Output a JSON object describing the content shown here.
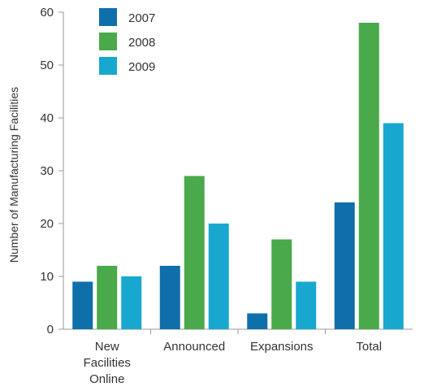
{
  "chart_data": {
    "type": "bar",
    "ylabel": "Number of Manufacturing Facilities",
    "xlabel": "",
    "ylim": [
      0,
      60
    ],
    "yticks": [
      0,
      10,
      20,
      30,
      40,
      50,
      60
    ],
    "grid": false,
    "legend_placement": "top-left",
    "categories": [
      [
        "New",
        "Facilities",
        "Online"
      ],
      [
        "Announced"
      ],
      [
        "Expansions"
      ],
      [
        "Total"
      ]
    ],
    "series": [
      {
        "name": "2007",
        "color": "#0f6faa",
        "values": [
          9,
          12,
          3,
          24
        ]
      },
      {
        "name": "2008",
        "color": "#4aa94a",
        "values": [
          12,
          29,
          17,
          58
        ]
      },
      {
        "name": "2009",
        "color": "#18a8cf",
        "values": [
          10,
          20,
          9,
          39
        ]
      }
    ]
  }
}
